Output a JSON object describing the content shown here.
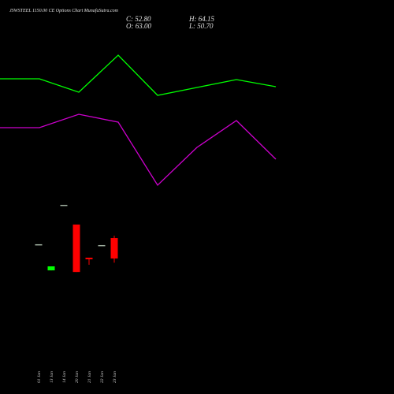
{
  "chart_data": [
    {
      "type": "line",
      "title": "JSWSTEEL 1150.00 CE Options Chart MunafaSutra.com",
      "x": [
        0,
        1,
        2,
        3,
        4,
        5,
        6,
        7
      ],
      "xlim": [
        0,
        10
      ],
      "ylim": [
        0,
        500
      ],
      "series": [
        {
          "color": "#00ff00",
          "values": [
            400,
            400,
            383,
            430,
            379,
            389,
            399,
            390
          ]
        },
        {
          "color": "#cc00cc",
          "values": [
            338,
            338,
            355,
            345,
            265,
            313,
            347,
            298
          ]
        }
      ]
    },
    {
      "type": "candlestick",
      "close_label": "C: 52.80",
      "open_label": "O: 63.00",
      "high_label": "H: 64.15",
      "low_label": "L: 50.70",
      "categories": [
        "01 Jan",
        "13 Jan",
        "14 Jan",
        "20 Jan",
        "21 Jan",
        "22 Jan",
        "23 Jan"
      ],
      "open": [
        59.9,
        46.9,
        79.5,
        69.7,
        53.2,
        59.5,
        63.0
      ],
      "close": [
        59.9,
        48.9,
        79.5,
        46.1,
        52.4,
        59.5,
        52.8
      ],
      "high": [
        59.9,
        48.9,
        79.5,
        69.7,
        53.2,
        59.5,
        64.15
      ],
      "low": [
        59.9,
        46.9,
        79.5,
        46.1,
        49.7,
        59.5,
        50.7
      ],
      "up_color": "#00ff00",
      "down_color": "#ff0000",
      "flat_color": "#a0b0a0",
      "ylim": [
        44.2,
        83.4
      ]
    }
  ]
}
